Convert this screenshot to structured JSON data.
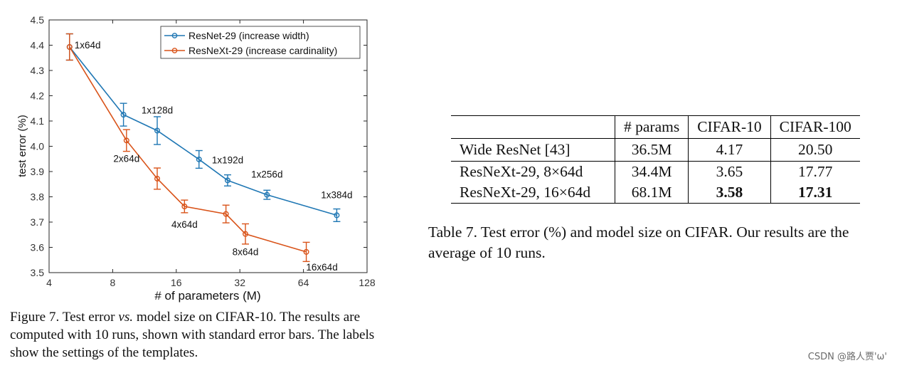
{
  "chart_data": {
    "type": "line",
    "xlabel": "# of parameters (M)",
    "ylabel": "test error (%)",
    "x_scale": "log2",
    "xlim": [
      4,
      128
    ],
    "ylim": [
      3.5,
      4.5
    ],
    "x_ticks": [
      4,
      8,
      16,
      32,
      64,
      128
    ],
    "y_ticks": [
      3.5,
      3.6,
      3.7,
      3.8,
      3.9,
      4.0,
      4.1,
      4.2,
      4.3,
      4.4,
      4.5
    ],
    "grid": false,
    "legend_position": "top-right",
    "series": [
      {
        "name": "ResNet-29 (increase width)",
        "color": "#1f77b4",
        "label_anchor": "upper",
        "points": [
          {
            "x": 5.0,
            "y": 4.393,
            "err": 0.052,
            "label": "1x64d"
          },
          {
            "x": 9.0,
            "y": 4.125,
            "err": 0.045,
            "label": ""
          },
          {
            "x": 13.0,
            "y": 4.062,
            "err": 0.055,
            "label": "1x128d"
          },
          {
            "x": 20.5,
            "y": 3.948,
            "err": 0.035,
            "label": ""
          },
          {
            "x": 28.0,
            "y": 3.865,
            "err": 0.022,
            "label": "1x192d"
          },
          {
            "x": 43.0,
            "y": 3.808,
            "err": 0.018,
            "label": "1x256d"
          },
          {
            "x": 92.0,
            "y": 3.727,
            "err": 0.025,
            "label": "1x384d"
          }
        ]
      },
      {
        "name": "ResNeXt-29 (increase cardinality)",
        "color": "#d95319",
        "label_anchor": "lower",
        "points": [
          {
            "x": 5.0,
            "y": 4.393,
            "err": 0.052,
            "label": ""
          },
          {
            "x": 9.3,
            "y": 4.023,
            "err": 0.043,
            "label": "2x64d"
          },
          {
            "x": 13.0,
            "y": 3.872,
            "err": 0.042,
            "label": ""
          },
          {
            "x": 17.5,
            "y": 3.762,
            "err": 0.025,
            "label": "4x64d"
          },
          {
            "x": 27.5,
            "y": 3.732,
            "err": 0.035,
            "label": ""
          },
          {
            "x": 34.0,
            "y": 3.653,
            "err": 0.04,
            "label": "8x64d"
          },
          {
            "x": 66.0,
            "y": 3.582,
            "err": 0.038,
            "label": "16x64d"
          }
        ]
      }
    ]
  },
  "figure_caption": {
    "prefix": "Figure 7. Test error ",
    "italic": "vs.",
    "rest": " model size on CIFAR-10. The results are computed with 10 runs, shown with standard error bars. The labels show the settings of the templates."
  },
  "table": {
    "headers": [
      "",
      "# params",
      "CIFAR-10",
      "CIFAR-100"
    ],
    "rows": [
      {
        "name": "Wide ResNet [43]",
        "params": "36.5M",
        "cifar10": "4.17",
        "cifar100": "20.50",
        "bold": false
      },
      {
        "name": "ResNeXt-29, 8×64d",
        "params": "34.4M",
        "cifar10": "3.65",
        "cifar100": "17.77",
        "bold": false
      },
      {
        "name": "ResNeXt-29, 16×64d",
        "params": "68.1M",
        "cifar10": "3.58",
        "cifar100": "17.31",
        "bold": true
      }
    ],
    "caption": "Table 7. Test error (%) and model size on CIFAR. Our results are the average of 10 runs."
  },
  "watermark": "CSDN @路人贾'ω'"
}
